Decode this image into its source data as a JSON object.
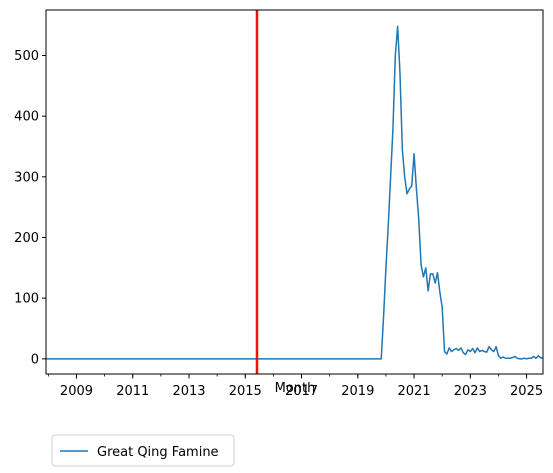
{
  "chart_data": {
    "type": "line",
    "title": "",
    "xlabel": "Month",
    "ylabel": "",
    "xlim": [
      "2007-12",
      "2025-08"
    ],
    "ylim": [
      -25,
      575
    ],
    "x_ticks": [
      "2009",
      "2011",
      "2013",
      "2015",
      "2017",
      "2019",
      "2021",
      "2023",
      "2025"
    ],
    "y_ticks": [
      0,
      100,
      200,
      300,
      400,
      500
    ],
    "grid": false,
    "legend_position": "below-left",
    "colors": {
      "series": "#1f77b4",
      "marker_line": "#ee1111",
      "axis": "#000000"
    },
    "vertical_line": {
      "x": "2015-06"
    },
    "series": [
      {
        "name": "Great Qing Famine",
        "x": [
          "2007-12",
          "2019-11",
          "2019-12",
          "2020-01",
          "2020-02",
          "2020-03",
          "2020-04",
          "2020-05",
          "2020-06",
          "2020-07",
          "2020-08",
          "2020-09",
          "2020-10",
          "2020-11",
          "2020-12",
          "2021-01",
          "2021-02",
          "2021-03",
          "2021-04",
          "2021-05",
          "2021-06",
          "2021-07",
          "2021-08",
          "2021-09",
          "2021-10",
          "2021-11",
          "2021-12",
          "2022-01",
          "2022-02",
          "2022-03",
          "2022-04",
          "2022-05",
          "2022-06",
          "2022-07",
          "2022-08",
          "2022-09",
          "2022-10",
          "2022-11",
          "2022-12",
          "2023-01",
          "2023-02",
          "2023-03",
          "2023-04",
          "2023-05",
          "2023-06",
          "2023-07",
          "2023-08",
          "2023-09",
          "2023-10",
          "2023-11",
          "2023-12",
          "2024-01",
          "2024-02",
          "2024-03",
          "2024-04",
          "2024-05",
          "2024-06",
          "2024-07",
          "2024-08",
          "2024-09",
          "2024-10",
          "2024-11",
          "2024-12",
          "2025-01",
          "2025-02",
          "2025-03",
          "2025-04",
          "2025-05",
          "2025-06",
          "2025-07",
          "2025-08"
        ],
        "values": [
          0,
          0,
          70,
          150,
          220,
          300,
          380,
          500,
          548,
          470,
          345,
          300,
          272,
          280,
          285,
          338,
          280,
          230,
          155,
          135,
          150,
          112,
          140,
          140,
          125,
          142,
          110,
          85,
          12,
          8,
          18,
          12,
          15,
          17,
          14,
          18,
          10,
          7,
          15,
          12,
          17,
          10,
          18,
          12,
          14,
          12,
          11,
          20,
          15,
          12,
          20,
          5,
          1,
          3,
          1,
          1,
          1,
          2,
          4,
          1,
          0,
          0,
          1,
          0,
          1,
          1,
          4,
          1,
          5,
          2,
          1
        ]
      }
    ]
  }
}
